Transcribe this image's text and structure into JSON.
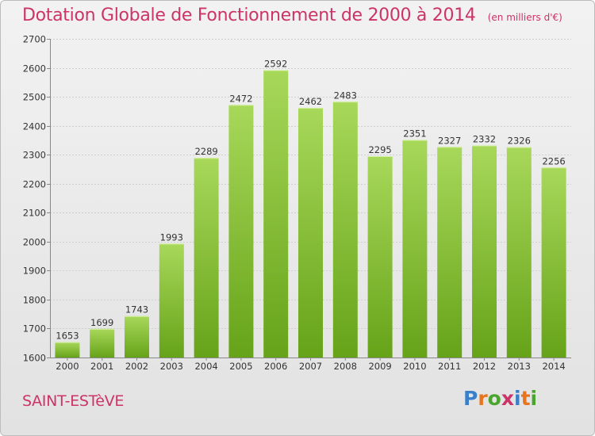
{
  "header": {
    "title": "Dotation Globale de Fonctionnement de 2000 à 2014",
    "subtitle": "(en milliers d'€)"
  },
  "footer": {
    "commune": "SAINT-ESTèVE",
    "brand": "Proxiti"
  },
  "colors": {
    "accent": "#cc3366",
    "bar_light": "#a8d85a",
    "bar_dark": "#66a319",
    "logo_letters": [
      "#3a7fc9",
      "#e8741e",
      "#4aa52e",
      "#cc3366",
      "#3a7fc9",
      "#e8741e",
      "#4aa52e"
    ]
  },
  "chart_data": {
    "type": "bar",
    "categories": [
      "2000",
      "2001",
      "2002",
      "2003",
      "2004",
      "2005",
      "2006",
      "2007",
      "2008",
      "2009",
      "2010",
      "2011",
      "2012",
      "2013",
      "2014"
    ],
    "values": [
      1653,
      1699,
      1743,
      1993,
      2289,
      2472,
      2592,
      2462,
      2483,
      2295,
      2351,
      2327,
      2332,
      2326,
      2256
    ],
    "ylim": [
      1600,
      2700
    ],
    "yticks": [
      1600,
      1700,
      1800,
      1900,
      2000,
      2100,
      2200,
      2300,
      2400,
      2500,
      2600,
      2700
    ],
    "grid": true,
    "title": "Dotation Globale de Fonctionnement de 2000 à 2014",
    "xlabel": "",
    "ylabel": ""
  }
}
